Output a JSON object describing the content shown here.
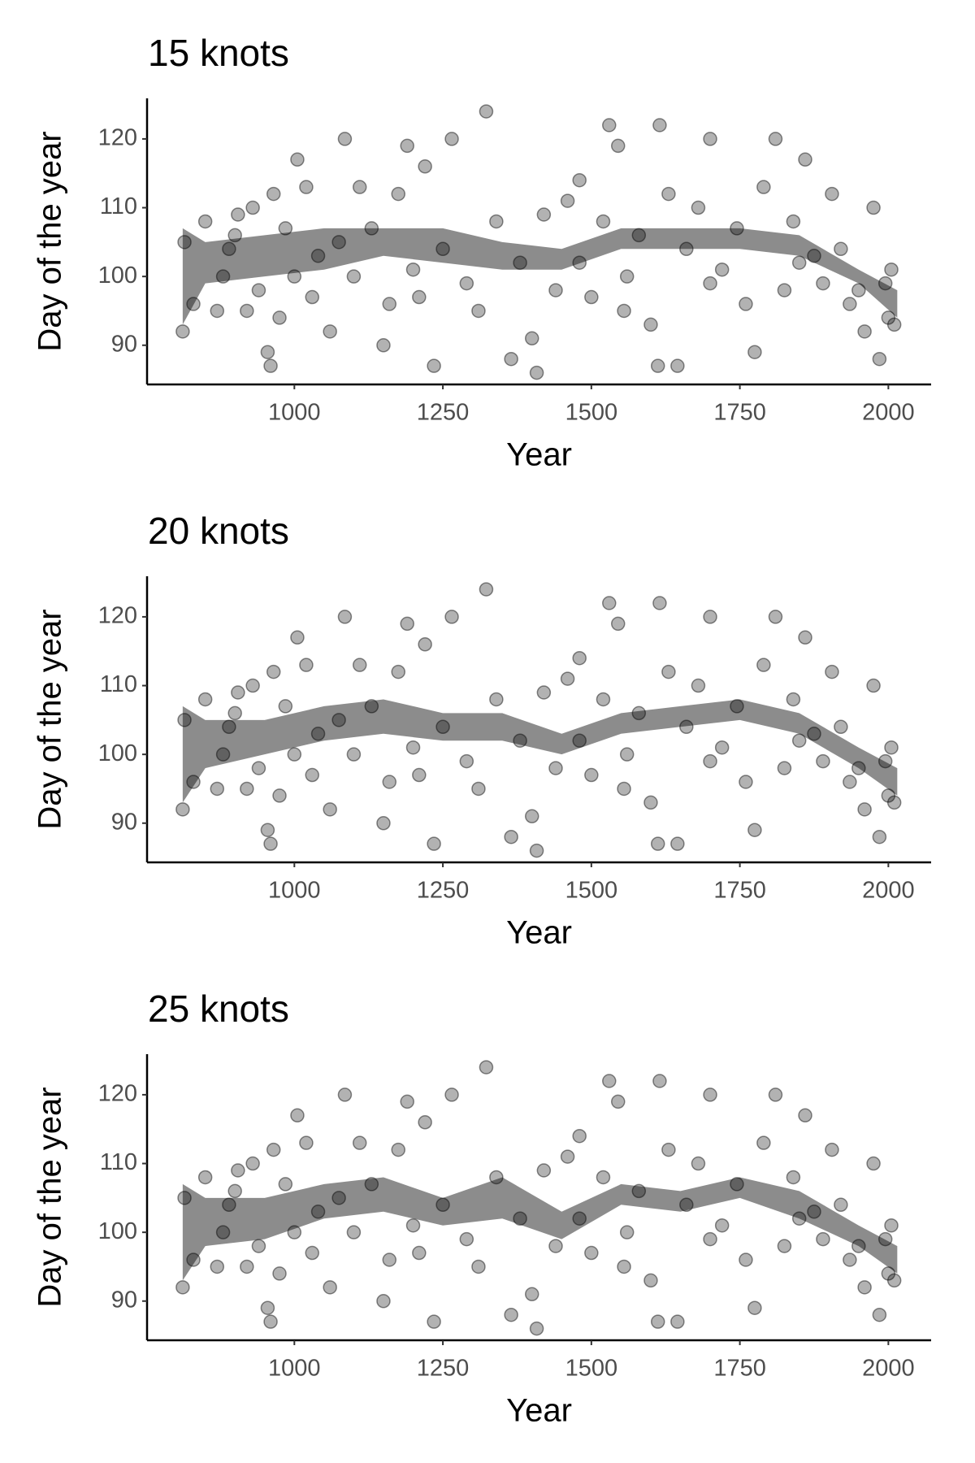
{
  "chart_data": [
    {
      "type": "scatter",
      "title": "15 knots",
      "x_label": "Year",
      "y_label": "Day of the year",
      "x": [
        812,
        815,
        830,
        850,
        870,
        880,
        890,
        900,
        905,
        920,
        930,
        940,
        955,
        960,
        965,
        975,
        985,
        1000,
        1005,
        1020,
        1030,
        1040,
        1060,
        1075,
        1085,
        1100,
        1110,
        1130,
        1150,
        1160,
        1175,
        1190,
        1200,
        1220,
        1235,
        1250,
        1265,
        1290,
        1310,
        1323,
        1340,
        1365,
        1380,
        1400,
        1408,
        1420,
        1440,
        1460,
        1480,
        1500,
        1520,
        1530,
        1545,
        1560,
        1580,
        1600,
        1615,
        1630,
        1645,
        1660,
        1680,
        1700,
        1720,
        1745,
        1760,
        1775,
        1790,
        1810,
        1825,
        1840,
        1860,
        1875,
        1890,
        1905,
        1920,
        1935,
        1950,
        1960,
        1975,
        1985,
        1995,
        2000,
        2005,
        2010,
        1612,
        1210,
        1555,
        1700,
        1850,
        1480
      ],
      "values": [
        92,
        105,
        96,
        108,
        95,
        100,
        104,
        106,
        109,
        95,
        110,
        98,
        89,
        87,
        112,
        94,
        107,
        100,
        117,
        113,
        97,
        103,
        92,
        105,
        120,
        100,
        113,
        107,
        90,
        96,
        112,
        119,
        101,
        116,
        87,
        104,
        120,
        99,
        95,
        124,
        108,
        88,
        102,
        91,
        86,
        109,
        98,
        111,
        102,
        97,
        108,
        122,
        119,
        100,
        106,
        93,
        122,
        112,
        87,
        104,
        110,
        120,
        101,
        107,
        96,
        89,
        113,
        120,
        98,
        108,
        117,
        103,
        99,
        112,
        104,
        96,
        98,
        92,
        110,
        88,
        99,
        94,
        101,
        93,
        87,
        97,
        95,
        99,
        102,
        114
      ],
      "color": "#000000",
      "band": {
        "x": [
          812,
          850,
          950,
          1050,
          1150,
          1250,
          1350,
          1450,
          1550,
          1650,
          1750,
          1850,
          1950,
          2015
        ],
        "lower": [
          93,
          99,
          100,
          101,
          103,
          102,
          101,
          101,
          104,
          104,
          104,
          103,
          99,
          94
        ],
        "upper": [
          107,
          105,
          106,
          107,
          107,
          107,
          105,
          104,
          107,
          107,
          107,
          106,
          101,
          98
        ],
        "color": "#8c8c8c"
      },
      "xlim": [
        752,
        2072
      ],
      "ylim": [
        84.3,
        125.9
      ],
      "xticks": [
        1000,
        1250,
        1500,
        1750,
        2000
      ],
      "yticks": [
        90,
        100,
        110,
        120
      ]
    },
    {
      "type": "scatter",
      "title": "20 knots",
      "x_label": "Year",
      "y_label": "Day of the year",
      "x": [
        812,
        815,
        830,
        850,
        870,
        880,
        890,
        900,
        905,
        920,
        930,
        940,
        955,
        960,
        965,
        975,
        985,
        1000,
        1005,
        1020,
        1030,
        1040,
        1060,
        1075,
        1085,
        1100,
        1110,
        1130,
        1150,
        1160,
        1175,
        1190,
        1200,
        1220,
        1235,
        1250,
        1265,
        1290,
        1310,
        1323,
        1340,
        1365,
        1380,
        1400,
        1408,
        1420,
        1440,
        1460,
        1480,
        1500,
        1520,
        1530,
        1545,
        1560,
        1580,
        1600,
        1615,
        1630,
        1645,
        1660,
        1680,
        1700,
        1720,
        1745,
        1760,
        1775,
        1790,
        1810,
        1825,
        1840,
        1860,
        1875,
        1890,
        1905,
        1920,
        1935,
        1950,
        1960,
        1975,
        1985,
        1995,
        2000,
        2005,
        2010,
        1612,
        1210,
        1555,
        1700,
        1850,
        1480
      ],
      "values": [
        92,
        105,
        96,
        108,
        95,
        100,
        104,
        106,
        109,
        95,
        110,
        98,
        89,
        87,
        112,
        94,
        107,
        100,
        117,
        113,
        97,
        103,
        92,
        105,
        120,
        100,
        113,
        107,
        90,
        96,
        112,
        119,
        101,
        116,
        87,
        104,
        120,
        99,
        95,
        124,
        108,
        88,
        102,
        91,
        86,
        109,
        98,
        111,
        102,
        97,
        108,
        122,
        119,
        100,
        106,
        93,
        122,
        112,
        87,
        104,
        110,
        120,
        101,
        107,
        96,
        89,
        113,
        120,
        98,
        108,
        117,
        103,
        99,
        112,
        104,
        96,
        98,
        92,
        110,
        88,
        99,
        94,
        101,
        93,
        87,
        97,
        95,
        99,
        102,
        114
      ],
      "color": "#000000",
      "band": {
        "x": [
          812,
          850,
          950,
          1050,
          1150,
          1250,
          1350,
          1450,
          1550,
          1650,
          1750,
          1850,
          1950,
          2015
        ],
        "lower": [
          93,
          98,
          100,
          102,
          103,
          102,
          102,
          100,
          103,
          104,
          105,
          103,
          98,
          94
        ],
        "upper": [
          107,
          105,
          105,
          107,
          108,
          106,
          106,
          103,
          106,
          107,
          108,
          106,
          101,
          98
        ],
        "color": "#8c8c8c"
      },
      "xlim": [
        752,
        2072
      ],
      "ylim": [
        84.3,
        125.9
      ],
      "xticks": [
        1000,
        1250,
        1500,
        1750,
        2000
      ],
      "yticks": [
        90,
        100,
        110,
        120
      ]
    },
    {
      "type": "scatter",
      "title": "25 knots",
      "x_label": "Year",
      "y_label": "Day of the year",
      "x": [
        812,
        815,
        830,
        850,
        870,
        880,
        890,
        900,
        905,
        920,
        930,
        940,
        955,
        960,
        965,
        975,
        985,
        1000,
        1005,
        1020,
        1030,
        1040,
        1060,
        1075,
        1085,
        1100,
        1110,
        1130,
        1150,
        1160,
        1175,
        1190,
        1200,
        1220,
        1235,
        1250,
        1265,
        1290,
        1310,
        1323,
        1340,
        1365,
        1380,
        1400,
        1408,
        1420,
        1440,
        1460,
        1480,
        1500,
        1520,
        1530,
        1545,
        1560,
        1580,
        1600,
        1615,
        1630,
        1645,
        1660,
        1680,
        1700,
        1720,
        1745,
        1760,
        1775,
        1790,
        1810,
        1825,
        1840,
        1860,
        1875,
        1890,
        1905,
        1920,
        1935,
        1950,
        1960,
        1975,
        1985,
        1995,
        2000,
        2005,
        2010,
        1612,
        1210,
        1555,
        1700,
        1850,
        1480
      ],
      "values": [
        92,
        105,
        96,
        108,
        95,
        100,
        104,
        106,
        109,
        95,
        110,
        98,
        89,
        87,
        112,
        94,
        107,
        100,
        117,
        113,
        97,
        103,
        92,
        105,
        120,
        100,
        113,
        107,
        90,
        96,
        112,
        119,
        101,
        116,
        87,
        104,
        120,
        99,
        95,
        124,
        108,
        88,
        102,
        91,
        86,
        109,
        98,
        111,
        102,
        97,
        108,
        122,
        119,
        100,
        106,
        93,
        122,
        112,
        87,
        104,
        110,
        120,
        101,
        107,
        96,
        89,
        113,
        120,
        98,
        108,
        117,
        103,
        99,
        112,
        104,
        96,
        98,
        92,
        110,
        88,
        99,
        94,
        101,
        93,
        87,
        97,
        95,
        99,
        102,
        114
      ],
      "color": "#000000",
      "band": {
        "x": [
          812,
          850,
          950,
          1050,
          1150,
          1250,
          1350,
          1450,
          1550,
          1650,
          1750,
          1850,
          1950,
          2015
        ],
        "lower": [
          93,
          98,
          99,
          102,
          103,
          101,
          102,
          99,
          104,
          103,
          105,
          102,
          98,
          94
        ],
        "upper": [
          107,
          105,
          105,
          107,
          108,
          105,
          108,
          103,
          107,
          106,
          108,
          106,
          101,
          98
        ],
        "color": "#8c8c8c"
      },
      "xlim": [
        752,
        2072
      ],
      "ylim": [
        84.3,
        125.9
      ],
      "xticks": [
        1000,
        1250,
        1500,
        1750,
        2000
      ],
      "yticks": [
        90,
        100,
        110,
        120
      ]
    }
  ]
}
